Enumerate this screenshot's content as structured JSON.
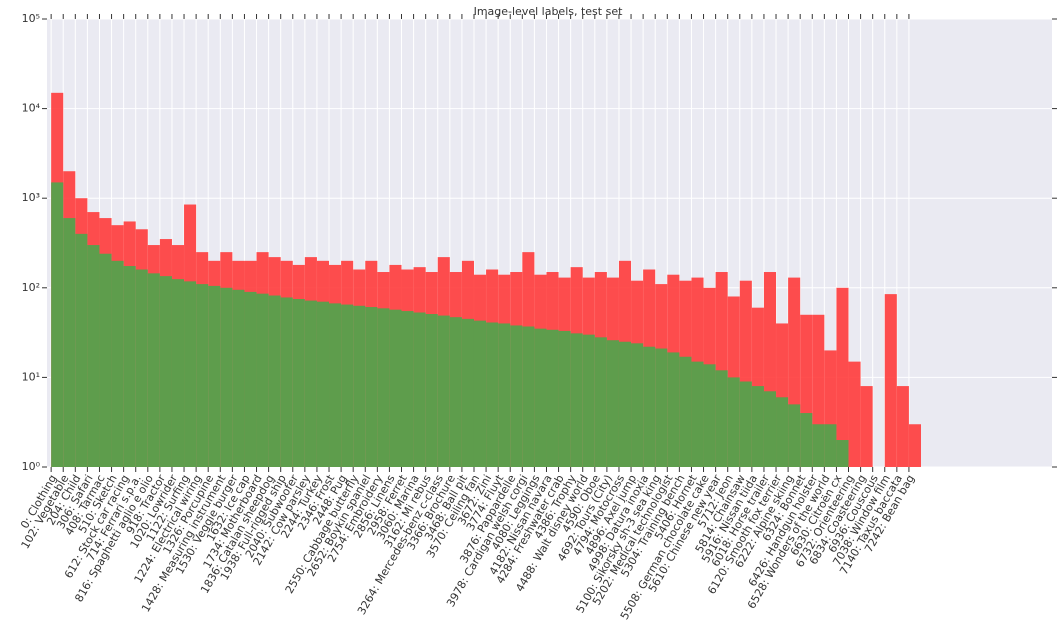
{
  "chart_data": {
    "type": "histogram",
    "title": "Image-level labels, test set",
    "bins": [
      0,
      102,
      204,
      306,
      408,
      510,
      612,
      714,
      816,
      918,
      1020,
      1122,
      1224,
      1326,
      1428,
      1530,
      1632,
      1734,
      1836,
      1938,
      2040,
      2142,
      2244,
      2346,
      2448,
      2550,
      2652,
      2754,
      2856,
      2958,
      3060,
      3162,
      3264,
      3366,
      3468,
      3570,
      3672,
      3774,
      3876,
      3978,
      4080,
      4182,
      4284,
      4386,
      4488,
      4590,
      4692,
      4794,
      4896,
      4998,
      5100,
      5202,
      5304,
      5406,
      5508,
      5610,
      5712,
      5814,
      5916,
      6018,
      6120,
      6222,
      6324,
      6426,
      6528,
      6630,
      6732,
      6834,
      6936,
      7038,
      7140,
      7242,
      7344
    ],
    "series": [
      {
        "name": "red",
        "color": "#ff3b3b",
        "values": [
          15000,
          2000,
          1000,
          700,
          600,
          500,
          550,
          450,
          300,
          350,
          300,
          850,
          250,
          200,
          250,
          200,
          200,
          250,
          220,
          200,
          180,
          220,
          200,
          180,
          200,
          160,
          200,
          150,
          180,
          160,
          170,
          150,
          220,
          150,
          200,
          140,
          160,
          140,
          150,
          250,
          140,
          150,
          130,
          170,
          130,
          150,
          130,
          200,
          120,
          160,
          110,
          140,
          120,
          130,
          100,
          150,
          80,
          120,
          60,
          150,
          40,
          130,
          50,
          50,
          20,
          100,
          15,
          8,
          null,
          85,
          8,
          3
        ]
      },
      {
        "name": "green",
        "color": "#4ca64c",
        "values": [
          1500,
          600,
          400,
          300,
          240,
          200,
          175,
          160,
          145,
          135,
          125,
          118,
          110,
          105,
          100,
          95,
          90,
          86,
          82,
          78,
          75,
          72,
          70,
          67,
          65,
          63,
          61,
          59,
          57,
          55,
          53,
          51,
          49,
          47,
          45,
          43,
          41,
          40,
          38,
          37,
          35,
          34,
          33,
          31,
          30,
          28,
          26,
          25,
          24,
          22,
          21,
          19,
          17,
          15,
          14,
          12,
          10,
          9,
          8,
          7,
          6,
          5,
          4,
          3,
          3,
          2,
          null,
          null,
          null,
          null,
          null,
          null
        ]
      }
    ],
    "log_y": true,
    "grid": true,
    "xlim": [
      -35,
      8450
    ],
    "xticks": [
      {
        "value": 0,
        "label": "0: Clothing"
      },
      {
        "value": 102,
        "label": "102: Vegetable"
      },
      {
        "value": 204,
        "label": "204: Child"
      },
      {
        "value": 306,
        "label": "306: Safari"
      },
      {
        "value": 408,
        "label": "408: Tarmac"
      },
      {
        "value": 510,
        "label": "510: Sketch"
      },
      {
        "value": 612,
        "label": "612: Stock car racing"
      },
      {
        "value": 714,
        "label": "714: Ferrari s.p.a."
      },
      {
        "value": 816,
        "label": "816: Spaghetti aglio e olio"
      },
      {
        "value": 918,
        "label": "918: Tractor"
      },
      {
        "value": 1020,
        "label": "1020: Lowrider"
      },
      {
        "value": 1122,
        "label": "1122: Surfing"
      },
      {
        "value": 1224,
        "label": "1224: Electrical wiring"
      },
      {
        "value": 1326,
        "label": "1326: Porcupine"
      },
      {
        "value": 1428,
        "label": "1428: Measuring instrument"
      },
      {
        "value": 1530,
        "label": "1530: Veggie burger"
      },
      {
        "value": 1632,
        "label": "1632: Ice cap"
      },
      {
        "value": 1734,
        "label": "1734: Motherboard"
      },
      {
        "value": 1836,
        "label": "1836: Catalan sheepdog"
      },
      {
        "value": 1938,
        "label": "1938: Full-rigged ship"
      },
      {
        "value": 2040,
        "label": "2040: Subwoofer"
      },
      {
        "value": 2142,
        "label": "2142: Cow parsley"
      },
      {
        "value": 2244,
        "label": "2244: Turkey"
      },
      {
        "value": 2346,
        "label": "2346: Frost"
      },
      {
        "value": 2448,
        "label": "2448: Pug"
      },
      {
        "value": 2550,
        "label": "2550: Cabbage butterfly"
      },
      {
        "value": 2652,
        "label": "2652: Boykin spaniel"
      },
      {
        "value": 2754,
        "label": "2754: Embroidery"
      },
      {
        "value": 2856,
        "label": "2856: Linens"
      },
      {
        "value": 2958,
        "label": "2958: Ferret"
      },
      {
        "value": 3060,
        "label": "3060: Marina"
      },
      {
        "value": 3162,
        "label": "3162: Mi rebus"
      },
      {
        "value": 3264,
        "label": "3264: Mercedes-benz c-class"
      },
      {
        "value": 3366,
        "label": "3366: Brochure"
      },
      {
        "value": 3468,
        "label": "3468: Ball pit"
      },
      {
        "value": 3570,
        "label": "3570: Ceiling fan"
      },
      {
        "value": 3672,
        "label": "3672: Zini"
      },
      {
        "value": 3774,
        "label": "3774: Fluyt"
      },
      {
        "value": 3876,
        "label": "3876: Pappardelle"
      },
      {
        "value": 3978,
        "label": "3978: Cardigan welsh corgi"
      },
      {
        "value": 4080,
        "label": "4080: Leggings"
      },
      {
        "value": 4182,
        "label": "4182: Nissan navara"
      },
      {
        "value": 4284,
        "label": "4284: Freshwater crab"
      },
      {
        "value": 4386,
        "label": "4386: Trophy"
      },
      {
        "value": 4488,
        "label": "4488: Walt disney world"
      },
      {
        "value": 4590,
        "label": "4590: Oboe"
      },
      {
        "value": 4692,
        "label": "4692: Tours (City)"
      },
      {
        "value": 4794,
        "label": "4794: Motocross"
      },
      {
        "value": 4896,
        "label": "4896: Axel jump"
      },
      {
        "value": 4998,
        "label": "4998: Datura inoxia"
      },
      {
        "value": 5100,
        "label": "5100: Sikorsky sh-3 sea king"
      },
      {
        "value": 5202,
        "label": "5202: Medical technologist"
      },
      {
        "value": 5304,
        "label": "5304: Training bench"
      },
      {
        "value": 5406,
        "label": "5406: Hornet"
      },
      {
        "value": 5508,
        "label": "5508: German chocolate cake"
      },
      {
        "value": 5610,
        "label": "5610: Chinese new year"
      },
      {
        "value": 5712,
        "label": "5712: Jeon"
      },
      {
        "value": 5814,
        "label": "5814: Chainsaw"
      },
      {
        "value": 5916,
        "label": "5916: Nissan tiida"
      },
      {
        "value": 6018,
        "label": "6018: Horse trailer"
      },
      {
        "value": 6120,
        "label": "6120: Smooth fox terrier"
      },
      {
        "value": 6222,
        "label": "6222: Alpine skiing"
      },
      {
        "value": 6324,
        "label": "6324: Bonnet"
      },
      {
        "value": 6426,
        "label": "6426: Handgun holster"
      },
      {
        "value": 6528,
        "label": "6528: Wonders of the world"
      },
      {
        "value": 6630,
        "label": "6630: Citroën cx"
      },
      {
        "value": 6732,
        "label": "6732: Orienteering"
      },
      {
        "value": 6834,
        "label": "6834: Coasteering"
      },
      {
        "value": 6936,
        "label": "6936: Couscous"
      },
      {
        "value": 7038,
        "label": "7038: Window film"
      },
      {
        "value": 7140,
        "label": "7140: Taxus baccata"
      },
      {
        "value": 7242,
        "label": "7242: Bean bag"
      }
    ],
    "ylim": [
      1,
      100000
    ],
    "yticks": [
      {
        "value": 1,
        "label": "10⁰"
      },
      {
        "value": 10,
        "label": "10¹"
      },
      {
        "value": 100,
        "label": "10²"
      },
      {
        "value": 1000,
        "label": "10³"
      },
      {
        "value": 10000,
        "label": "10⁴"
      },
      {
        "value": 100000,
        "label": "10⁵"
      }
    ]
  }
}
